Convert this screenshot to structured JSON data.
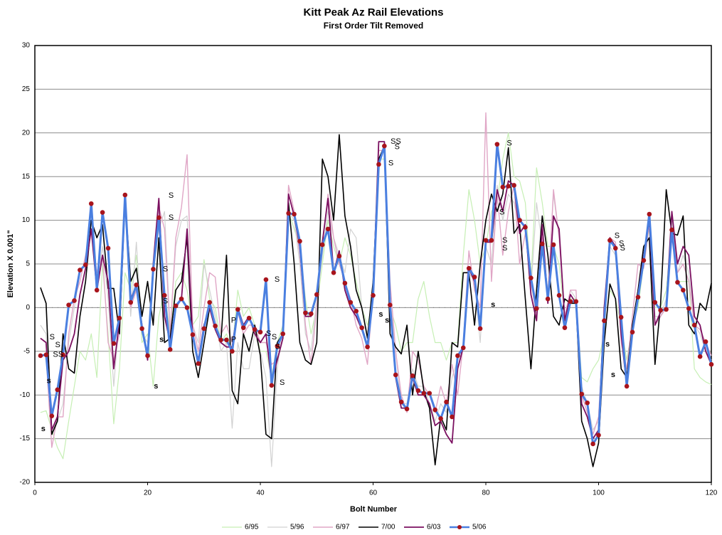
{
  "chart_data": {
    "type": "line",
    "title": "Kitt Peak Az Rail Elevations",
    "subtitle": "First Order Tilt Removed",
    "x_label": "Bolt Number",
    "y_label": "Elevation X 0.001\"",
    "xlim": [
      0,
      120
    ],
    "ylim": [
      -20,
      30
    ],
    "xticks": [
      0,
      20,
      40,
      60,
      80,
      100,
      120
    ],
    "yticks": [
      -20,
      -15,
      -10,
      -5,
      0,
      5,
      10,
      15,
      20,
      25,
      30
    ],
    "grid": true,
    "legend": "bottom",
    "x": [
      1,
      2,
      3,
      4,
      5,
      6,
      7,
      8,
      9,
      10,
      11,
      12,
      13,
      14,
      15,
      16,
      17,
      18,
      19,
      20,
      21,
      22,
      23,
      24,
      25,
      26,
      27,
      28,
      29,
      30,
      31,
      32,
      33,
      34,
      35,
      36,
      37,
      38,
      39,
      40,
      41,
      42,
      43,
      44,
      45,
      46,
      47,
      48,
      49,
      50,
      51,
      52,
      53,
      54,
      55,
      56,
      57,
      58,
      59,
      60,
      61,
      62,
      63,
      64,
      65,
      66,
      67,
      68,
      69,
      70,
      71,
      72,
      73,
      74,
      75,
      76,
      77,
      78,
      79,
      80,
      81,
      82,
      83,
      84,
      85,
      86,
      87,
      88,
      89,
      90,
      91,
      92,
      93,
      94,
      95,
      96,
      97,
      98,
      99,
      100,
      101,
      102,
      103,
      104,
      105,
      106,
      107,
      108,
      109,
      110,
      111,
      112,
      113,
      114,
      115,
      116,
      117,
      118,
      119,
      120
    ],
    "series": [
      {
        "name": "6/95",
        "color": "#c6efb4",
        "width": 1.2,
        "values": [
          -12,
          -11.8,
          -14,
          -16,
          -17.3,
          -13,
          -9,
          -5,
          -6,
          -3,
          -8,
          5,
          -3,
          -13.3,
          -7,
          4,
          2,
          6,
          -4,
          -3,
          -9,
          -1,
          2,
          -3,
          3,
          4,
          2,
          -2,
          -1,
          5.5,
          1,
          0,
          -4,
          -3,
          -5,
          2,
          -1,
          0,
          -2,
          -5,
          -5,
          -8,
          -4,
          -2,
          11,
          9,
          7,
          1,
          -3,
          0,
          5,
          10,
          7,
          5,
          8,
          6,
          3,
          0,
          -2,
          1,
          17,
          17,
          0,
          -2,
          -5,
          -4,
          -4,
          1,
          3,
          -1,
          -4,
          -4,
          -6,
          -4,
          -4,
          6,
          13.5,
          10,
          5,
          7,
          11,
          12,
          17,
          20,
          15,
          14.5,
          12,
          3,
          16,
          12,
          7,
          7,
          5,
          -1,
          1,
          1,
          -8,
          -8.5,
          -7,
          -6,
          -3,
          2,
          1,
          -2,
          -6,
          -2,
          0,
          5,
          9,
          0,
          0,
          2,
          9,
          3,
          3,
          3,
          -7,
          -8,
          -8.5,
          -8.8
        ]
      },
      {
        "name": "5/96",
        "color": "#d2d2d2",
        "width": 1.2,
        "values": [
          -2,
          -3,
          -14,
          -13,
          -11,
          -4,
          0,
          4,
          5.5,
          9,
          3,
          7,
          1,
          -9,
          -1,
          12,
          -1,
          7.5,
          -3,
          -4,
          4,
          9,
          11,
          -2.5,
          7,
          10,
          10.5,
          -2,
          -4,
          5,
          2,
          -1,
          -5,
          -4,
          -13.8,
          -4,
          -7,
          -7,
          -3,
          -5,
          -8,
          -18.2,
          -7,
          -2,
          11,
          10,
          5,
          -3,
          -5,
          1,
          6,
          11,
          8,
          6,
          4,
          9,
          8,
          0,
          -3,
          2,
          17,
          18,
          1,
          -5,
          -11,
          -11,
          -7,
          -9,
          -9,
          -11,
          -13,
          -11,
          -12,
          -8,
          -6,
          -4.5,
          4,
          3,
          -4,
          7,
          5,
          14,
          10,
          13,
          12,
          9,
          9,
          2,
          12,
          7,
          2,
          13,
          8,
          -1,
          2,
          1,
          -9,
          -11,
          -14,
          -13,
          -2,
          7,
          6,
          -3,
          -8,
          -2,
          2,
          6,
          10,
          -1,
          -1,
          1,
          10,
          4,
          6,
          4,
          -2,
          -3,
          -5,
          -6
        ]
      },
      {
        "name": "6/97",
        "color": "#e0a6c6",
        "width": 1.4,
        "values": [
          -5.5,
          -5.5,
          -16,
          -12.5,
          -12.5,
          -3,
          1,
          3,
          6,
          9,
          4,
          6,
          -4,
          -6,
          -3,
          12,
          0,
          2,
          -2,
          -5.5,
          4.5,
          11.5,
          9,
          -3,
          8,
          11.5,
          17.5,
          -2,
          -5,
          0,
          4,
          3.5,
          -3,
          -2,
          -4,
          -0.5,
          -3,
          -2,
          -2,
          -4,
          -4,
          -6.5,
          -6,
          -3.5,
          14,
          11,
          6,
          -2,
          -6.5,
          0,
          7,
          13,
          8,
          5,
          3,
          1,
          -2,
          -3.5,
          -6.5,
          2,
          18,
          18,
          3,
          -5,
          -10,
          -12,
          -5,
          -6,
          -9,
          -10,
          -12,
          -9,
          -11,
          -6.5,
          -10,
          -4,
          6.5,
          2,
          0,
          22.3,
          3,
          13,
          6,
          11,
          14,
          5,
          8.5,
          3,
          -1,
          8,
          1,
          13.5,
          8,
          -1,
          2,
          2,
          -10,
          -12,
          -14.5,
          -12.5,
          -1,
          8,
          7.5,
          -4,
          -7,
          -1,
          5,
          4.5,
          9.5,
          -2,
          -1,
          0,
          9,
          4,
          5,
          3,
          -2,
          -2.5,
          -4,
          -5.5
        ]
      },
      {
        "name": "7/00",
        "color": "#000000",
        "width": 1.6,
        "values": [
          2.3,
          0.5,
          -14.5,
          -13,
          -3,
          -7,
          -7.5,
          -1,
          3,
          10,
          8,
          9.5,
          2.2,
          2.2,
          -3,
          12.5,
          3,
          4.5,
          -1,
          3,
          -2,
          8,
          -4,
          -3.5,
          2,
          3,
          8,
          -5,
          -8,
          -4,
          0,
          -2,
          -4,
          6,
          -9.5,
          -11,
          -3,
          -5,
          -2,
          -5.5,
          -14.5,
          -15,
          -4,
          -3,
          12,
          5,
          -4,
          -6,
          -6.5,
          -4,
          17,
          15,
          10,
          19.8,
          10.5,
          7,
          2,
          0,
          -3.5,
          3,
          17,
          18.5,
          -3,
          -4.5,
          -5.3,
          -2,
          -10,
          -5,
          -9.5,
          -11.5,
          -18,
          -12.5,
          -14,
          -4,
          -4.5,
          4,
          4,
          -2,
          5,
          10,
          13,
          11,
          13,
          18.3,
          8.5,
          9.5,
          1,
          -7,
          2,
          10.5,
          6,
          -1,
          -2,
          1,
          0.5,
          0.5,
          -13,
          -15,
          -18.2,
          -15.5,
          -4,
          2.7,
          1,
          -7,
          -8,
          -2,
          2,
          7,
          8,
          -6.5,
          0.5,
          13.5,
          8.5,
          8.3,
          10.5,
          -2,
          -3,
          0.5,
          -0.3,
          2.8
        ]
      },
      {
        "name": "6/03",
        "color": "#7b1060",
        "width": 1.8,
        "values": [
          -3.5,
          -4,
          -14,
          -12.5,
          -6,
          -5,
          -3,
          1.5,
          4.5,
          9,
          2,
          6,
          3,
          -7,
          -1.5,
          12.5,
          1,
          2.5,
          -2,
          -6,
          5,
          12.5,
          -1,
          -4,
          0,
          1,
          9,
          -3.5,
          -6,
          -2,
          0,
          -2.5,
          -4,
          -4.5,
          -4.5,
          0,
          -2,
          -1,
          -3,
          -4,
          -3,
          -8.5,
          -6,
          -3.5,
          13,
          10.5,
          7,
          -1,
          -1,
          1.5,
          7.5,
          12.5,
          4,
          6.5,
          2,
          0,
          -1,
          -2.5,
          -4.5,
          1.5,
          19,
          19,
          0,
          -8,
          -11.5,
          -11.5,
          -8,
          -10,
          -10,
          -11,
          -13.5,
          -13,
          -14.5,
          -15.5,
          -7,
          -4.5,
          4.5,
          3,
          -2,
          7.5,
          7.5,
          13.5,
          11,
          14.5,
          14,
          8.5,
          9.5,
          1.5,
          -1.5,
          9.5,
          0.5,
          10.5,
          9,
          -1.5,
          1.5,
          0.5,
          -11,
          -12.5,
          -15,
          -14,
          0,
          8,
          7,
          -3,
          -9,
          -3,
          1.5,
          6,
          10,
          -2,
          -0.5,
          0,
          11,
          5,
          7,
          6,
          -1,
          -2,
          -5,
          -6.5
        ]
      },
      {
        "name": "5/06",
        "color": "#4a7fe0",
        "width": 3,
        "marker_color": "#a8141c",
        "values": [
          -5.5,
          -5.4,
          -12.4,
          -9.4,
          -5.4,
          0.3,
          0.8,
          4.3,
          4.9,
          11.9,
          2,
          10.9,
          6.8,
          -4.1,
          -1.2,
          12.9,
          0.6,
          2.6,
          -2.4,
          -5.5,
          4.4,
          10.3,
          1.4,
          -4.8,
          0.2,
          1,
          0,
          -3.1,
          -6.4,
          -2.4,
          0.6,
          -2.1,
          -3.7,
          -3.7,
          -5,
          -0.2,
          -2.3,
          -1.2,
          -2.5,
          -2.8,
          3.2,
          -8.9,
          -4.4,
          -3,
          10.8,
          10.7,
          7.6,
          -0.6,
          -0.7,
          1.5,
          7.2,
          9,
          4,
          5.9,
          2.8,
          0.6,
          -0.4,
          -2.3,
          -4.5,
          1.4,
          16.4,
          18.5,
          0.3,
          -7.7,
          -10.8,
          -11.6,
          -7.8,
          -9.5,
          -9.8,
          -9.8,
          -11.7,
          -12.7,
          -10.8,
          -12.5,
          -5.5,
          -4.6,
          4.5,
          3.5,
          -2.4,
          7.7,
          7.7,
          18.7,
          13.8,
          13.9,
          14,
          10,
          9.2,
          3.4,
          -0.1,
          7.3,
          1,
          7.2,
          1.4,
          -2.3,
          0.7,
          0.7,
          -9.9,
          -10.9,
          -15.6,
          -14.6,
          -1.5,
          7.7,
          6.8,
          -1.1,
          -9,
          -2.8,
          1.2,
          5.4,
          10.7,
          0.6,
          -0.3,
          -0.2,
          8.9,
          2.9,
          2,
          -0.1,
          -2,
          -5.6,
          -3.9,
          -6.5
        ]
      }
    ],
    "annotations": [
      {
        "text": "S",
        "x": 2.6,
        "y": -3.4
      },
      {
        "text": "S",
        "x": 3.6,
        "y": -4.3
      },
      {
        "text": "SS",
        "x": 3.2,
        "y": -5.4
      },
      {
        "text": "s",
        "x": 2.1,
        "y": -8.4
      },
      {
        "text": "s",
        "x": 1.1,
        "y": -13.9
      },
      {
        "text": "S",
        "x": 23.7,
        "y": 12.8
      },
      {
        "text": "S",
        "x": 23.7,
        "y": 10.3
      },
      {
        "text": "S",
        "x": 22.7,
        "y": 4.4
      },
      {
        "text": "S",
        "x": 22.7,
        "y": 0.7
      },
      {
        "text": "s",
        "x": 22.1,
        "y": -3.7
      },
      {
        "text": "s",
        "x": 21.1,
        "y": -9
      },
      {
        "text": "P",
        "x": 34.8,
        "y": -1.5
      },
      {
        "text": "P",
        "x": 34.8,
        "y": -3.7
      },
      {
        "text": "S",
        "x": 42.5,
        "y": 3.2
      },
      {
        "text": "S",
        "x": 41,
        "y": -3
      },
      {
        "text": "S",
        "x": 42,
        "y": -3.4
      },
      {
        "text": "S",
        "x": 42.6,
        "y": -4.5
      },
      {
        "text": "S",
        "x": 43.4,
        "y": -8.6
      },
      {
        "text": "SS",
        "x": 63.1,
        "y": 19
      },
      {
        "text": "S",
        "x": 63.8,
        "y": 18.4
      },
      {
        "text": "S",
        "x": 62.7,
        "y": 16.5
      },
      {
        "text": "s",
        "x": 61,
        "y": -0.8
      },
      {
        "text": "s",
        "x": 62.1,
        "y": -1.5
      },
      {
        "text": "S",
        "x": 83.7,
        "y": 18.8
      },
      {
        "text": "S",
        "x": 82.4,
        "y": 10.9
      },
      {
        "text": "S",
        "x": 82.9,
        "y": 7.7
      },
      {
        "text": "S",
        "x": 82.9,
        "y": 6.8
      },
      {
        "text": "s",
        "x": 80.9,
        "y": 0.3
      },
      {
        "text": "S",
        "x": 102.8,
        "y": 8.2
      },
      {
        "text": "S",
        "x": 103.6,
        "y": 7.3
      },
      {
        "text": "S",
        "x": 103.8,
        "y": 6.8
      },
      {
        "text": "s",
        "x": 101.2,
        "y": -4.2
      },
      {
        "text": "s",
        "x": 102.2,
        "y": -7.7
      }
    ]
  }
}
